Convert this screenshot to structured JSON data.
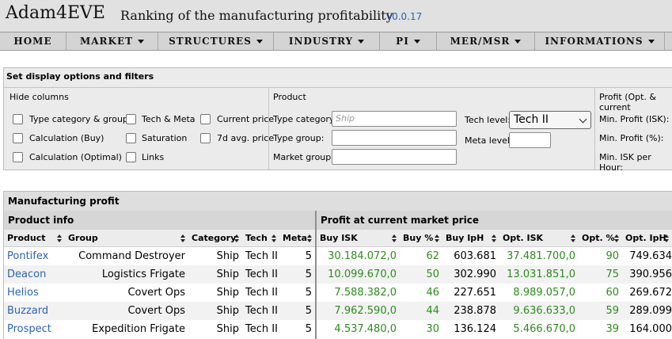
{
  "header": {
    "logo": "Adam4EVE",
    "subtitle": "Ranking of the manufacturing profitability",
    "version": "v0.0.17"
  },
  "nav": {
    "items": [
      {
        "label": "HOME"
      },
      {
        "label": "MARKET"
      },
      {
        "label": "STRUCTURES"
      },
      {
        "label": "INDUSTRY"
      },
      {
        "label": "PI"
      },
      {
        "label": "MER/MSR"
      },
      {
        "label": "INFORMATIONS"
      }
    ]
  },
  "filters": {
    "title": "Set display options and filters",
    "hide_columns_label": "Hide columns",
    "product_label": "Product",
    "profit_label": "Profit (Opt. & current",
    "checkboxes": [
      {
        "label": "Type category & group",
        "checked": false
      },
      {
        "label": "Tech & Meta",
        "checked": false
      },
      {
        "label": "Current price",
        "checked": false
      },
      {
        "label": "Calculation (Buy)",
        "checked": false
      },
      {
        "label": "Saturation",
        "checked": false
      },
      {
        "label": "7d avg. price",
        "checked": false
      },
      {
        "label": "Calculation (Optimal)",
        "checked": false
      },
      {
        "label": "Links",
        "checked": false
      }
    ],
    "type_category_label": "Type category:",
    "type_category_placeholder": "Ship",
    "type_group_label": "Type group:",
    "market_group_label": "Market group:",
    "tech_level_label": "Tech level:",
    "tech_level_value": "Tech II",
    "meta_level_label": "Meta level:",
    "min_profit_isk_label": "Min. Profit (ISK):",
    "min_profit_pct_label": "Min. Profit (%):",
    "min_isk_hour_label": "Min. ISK per Hour:"
  },
  "table": {
    "title": "Manufacturing profit",
    "group_product_info": "Product info",
    "group_profit": "Profit at current market price",
    "columns": [
      "Product",
      "Group",
      "Category",
      "Tech",
      "Meta",
      "Buy ISK",
      "Buy %",
      "Buy IpH",
      "Opt. ISK",
      "Opt. %",
      "Opt. IpH"
    ],
    "rows": [
      {
        "product": "Pontifex",
        "group": "Command Destroyer",
        "category": "Ship",
        "tech": "Tech II",
        "meta": "5",
        "buy_isk": "30.184.072,0",
        "buy_pct": "62",
        "buy_iph": "603.681",
        "opt_isk": "37.481.700,0",
        "opt_pct": "90",
        "opt_iph": "749.634"
      },
      {
        "product": "Deacon",
        "group": "Logistics Frigate",
        "category": "Ship",
        "tech": "Tech II",
        "meta": "5",
        "buy_isk": "10.099.670,0",
        "buy_pct": "50",
        "buy_iph": "302.990",
        "opt_isk": "13.031.851,0",
        "opt_pct": "75",
        "opt_iph": "390.956"
      },
      {
        "product": "Helios",
        "group": "Covert Ops",
        "category": "Ship",
        "tech": "Tech II",
        "meta": "5",
        "buy_isk": "7.588.382,0",
        "buy_pct": "46",
        "buy_iph": "227.651",
        "opt_isk": "8.989.057,0",
        "opt_pct": "60",
        "opt_iph": "269.672"
      },
      {
        "product": "Buzzard",
        "group": "Covert Ops",
        "category": "Ship",
        "tech": "Tech II",
        "meta": "5",
        "buy_isk": "7.962.590,0",
        "buy_pct": "44",
        "buy_iph": "238.878",
        "opt_isk": "9.636.633,0",
        "opt_pct": "59",
        "opt_iph": "289.099"
      },
      {
        "product": "Prospect",
        "group": "Expedition Frigate",
        "category": "Ship",
        "tech": "Tech II",
        "meta": "5",
        "buy_isk": "4.537.480,0",
        "buy_pct": "30",
        "buy_iph": "136.124",
        "opt_isk": "5.466.670,0",
        "opt_pct": "39",
        "opt_iph": "164.000"
      }
    ]
  },
  "colors": {
    "link": "#2a64b4",
    "profit_green": "#2e8b1f",
    "header_bg": "#e1e1e1",
    "nav_bg": "#d4d4d4"
  }
}
